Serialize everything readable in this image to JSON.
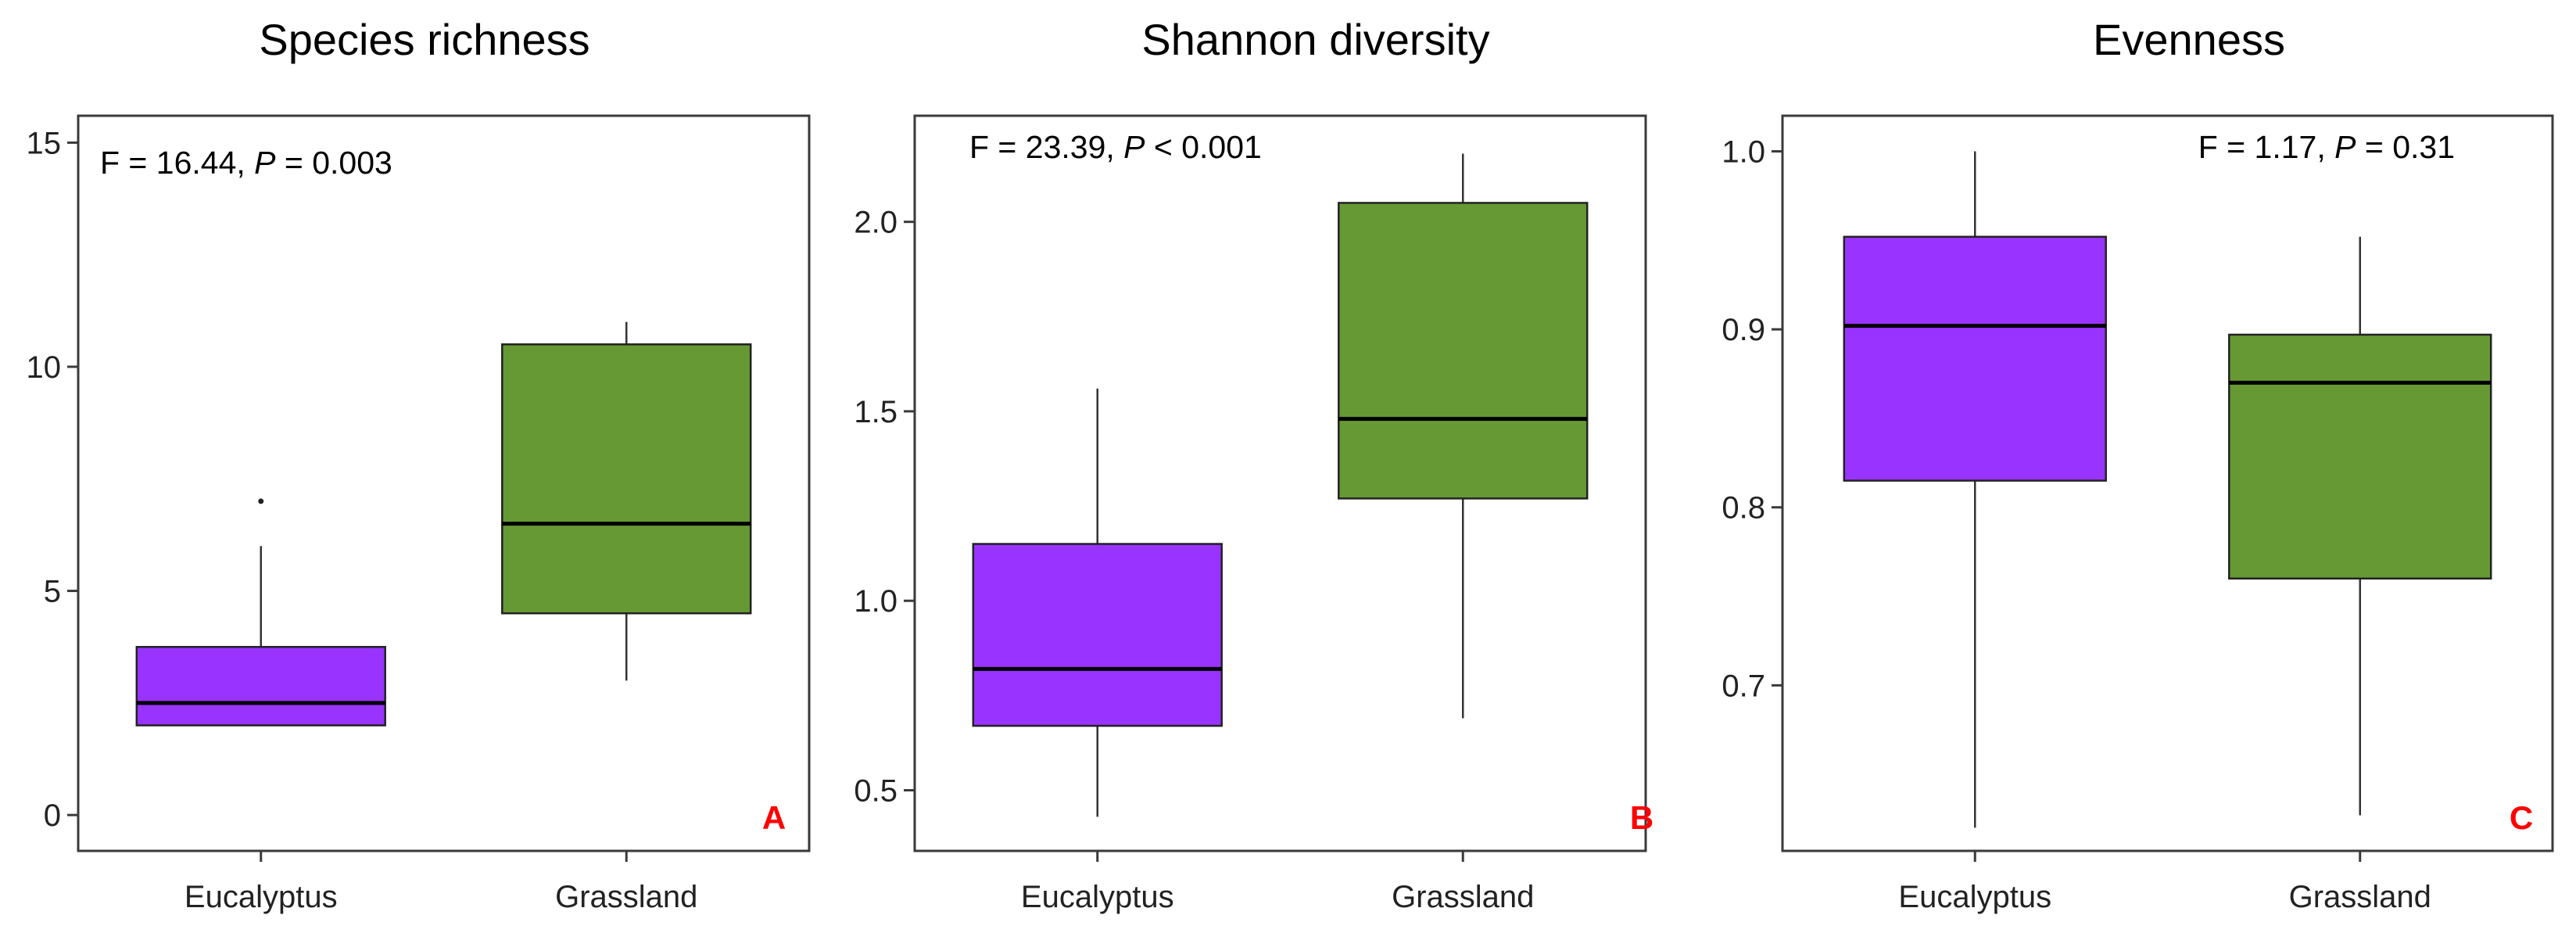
{
  "colors": {
    "Eucalyptus": "#9933ff",
    "Grassland": "#669933",
    "panel_letter": "#ff0000"
  },
  "chart_data": [
    {
      "type": "boxplot",
      "title": "Species richness",
      "categories": [
        "Eucalyptus",
        "Grassland"
      ],
      "boxes": [
        {
          "name": "Eucalyptus",
          "whisker_low": 2.0,
          "q1": 2.0,
          "median": 2.5,
          "q3": 3.75,
          "whisker_high": 6.0,
          "outliers": [
            7.0
          ]
        },
        {
          "name": "Grassland",
          "whisker_low": 3.0,
          "q1": 4.5,
          "median": 6.5,
          "q3": 10.5,
          "whisker_high": 11.0,
          "outliers": []
        }
      ],
      "ylim": [
        -0.8,
        15.6
      ],
      "yticks": [
        "0",
        "5",
        "10",
        "15"
      ],
      "ytick_values": [
        0,
        5,
        10,
        15
      ],
      "stat_prefix": "F = 16.44, ",
      "stat_p": "P",
      "stat_suffix": " =  0.003",
      "stat_position": "top-left",
      "panel_letter": "A",
      "grid": false
    },
    {
      "type": "boxplot",
      "title": "Shannon diversity",
      "categories": [
        "Eucalyptus",
        "Grassland"
      ],
      "boxes": [
        {
          "name": "Eucalyptus",
          "whisker_low": 0.43,
          "q1": 0.67,
          "median": 0.82,
          "q3": 1.15,
          "whisker_high": 1.56,
          "outliers": []
        },
        {
          "name": "Grassland",
          "whisker_low": 0.69,
          "q1": 1.27,
          "median": 1.48,
          "q3": 2.05,
          "whisker_high": 2.18,
          "outliers": []
        }
      ],
      "ylim": [
        0.34,
        2.28
      ],
      "yticks": [
        "0.5",
        "1.0",
        "1.5",
        "2.0"
      ],
      "ytick_values": [
        0.5,
        1.0,
        1.5,
        2.0
      ],
      "stat_prefix": "F = 23.39, ",
      "stat_p": "P",
      "stat_suffix": " <  0.001",
      "stat_position": "top-left",
      "panel_letter": "B",
      "grid": false
    },
    {
      "type": "boxplot",
      "title": "Evenness",
      "categories": [
        "Eucalyptus",
        "Grassland"
      ],
      "boxes": [
        {
          "name": "Eucalyptus",
          "whisker_low": 0.62,
          "q1": 0.815,
          "median": 0.902,
          "q3": 0.952,
          "whisker_high": 1.0,
          "outliers": []
        },
        {
          "name": "Grassland",
          "whisker_low": 0.627,
          "q1": 0.76,
          "median": 0.87,
          "q3": 0.897,
          "whisker_high": 0.952,
          "outliers": []
        }
      ],
      "ylim": [
        0.607,
        1.02
      ],
      "yticks": [
        "0.7",
        "0.8",
        "0.9",
        "1.0"
      ],
      "ytick_values": [
        0.7,
        0.8,
        0.9,
        1.0
      ],
      "stat_prefix": "F = 1.17, ",
      "stat_p": "P",
      "stat_suffix": " =  0.31",
      "stat_position": "top-right",
      "panel_letter": "C",
      "grid": false
    }
  ]
}
